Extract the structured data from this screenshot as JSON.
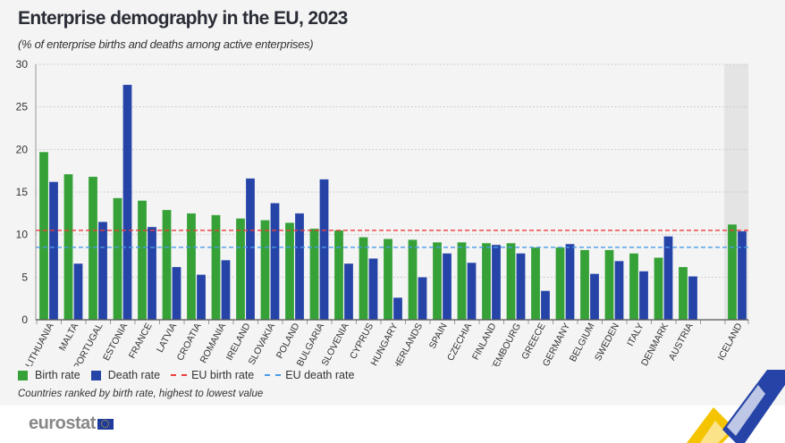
{
  "title": "Enterprise demography in the EU, 2023",
  "subtitle": "(% of enterprise births and deaths among active enterprises)",
  "legend": {
    "birth": "Birth rate",
    "death": "Death rate",
    "eu_birth": "EU birth rate",
    "eu_death": "EU death rate"
  },
  "note": "Countries ranked by birth rate, highest to lowest value",
  "logo": "eurostat",
  "colors": {
    "birth": "#35a137",
    "death": "#2644a7",
    "eu_birth": "#ee3b3b",
    "eu_death": "#4a9be8",
    "highlight_band": "#e4e4e4"
  },
  "chart_data": {
    "type": "bar",
    "title": "Enterprise demography in the EU, 2023",
    "ylim": [
      0,
      30
    ],
    "yticks": [
      0,
      5,
      10,
      15,
      20,
      25,
      30
    ],
    "grid": true,
    "legend_position": "bottom-left",
    "categories": [
      "LITHUANIA",
      "MALTA",
      "PORTUGAL",
      "ESTONIA",
      "FRANCE",
      "LATVIA",
      "CROATIA",
      "ROMANIA",
      "IRELAND",
      "SLOVAKIA",
      "POLAND",
      "BULGARIA",
      "SLOVENIA",
      "CYPRUS",
      "HUNGARY",
      "NETHERLANDS",
      "SPAIN",
      "CZECHIA",
      "FINLAND",
      "LUXEMBOURG",
      "GREECE",
      "GERMANY",
      "BELGIUM",
      "SWEDEN",
      "ITALY",
      "DENMARK",
      "AUSTRIA",
      "ICELAND"
    ],
    "series": [
      {
        "name": "Birth rate",
        "values": [
          19.7,
          17.1,
          16.8,
          14.3,
          14.0,
          12.9,
          12.5,
          12.3,
          11.9,
          11.7,
          11.4,
          10.7,
          10.5,
          9.7,
          9.5,
          9.4,
          9.1,
          9.1,
          9.0,
          9.0,
          8.5,
          8.5,
          8.2,
          8.2,
          7.8,
          7.3,
          6.2,
          11.2
        ]
      },
      {
        "name": "Death rate",
        "values": [
          16.2,
          6.6,
          11.5,
          27.6,
          10.9,
          6.2,
          5.3,
          7.0,
          16.6,
          13.7,
          12.5,
          16.5,
          6.6,
          7.2,
          2.6,
          5.0,
          7.8,
          6.7,
          8.8,
          7.8,
          3.4,
          8.9,
          5.4,
          6.9,
          5.7,
          9.8,
          5.1,
          10.4
        ]
      }
    ],
    "reference_lines": [
      {
        "name": "EU birth rate",
        "value": 10.5
      },
      {
        "name": "EU death rate",
        "value": 8.5
      }
    ],
    "highlighted_category": "ICELAND"
  }
}
